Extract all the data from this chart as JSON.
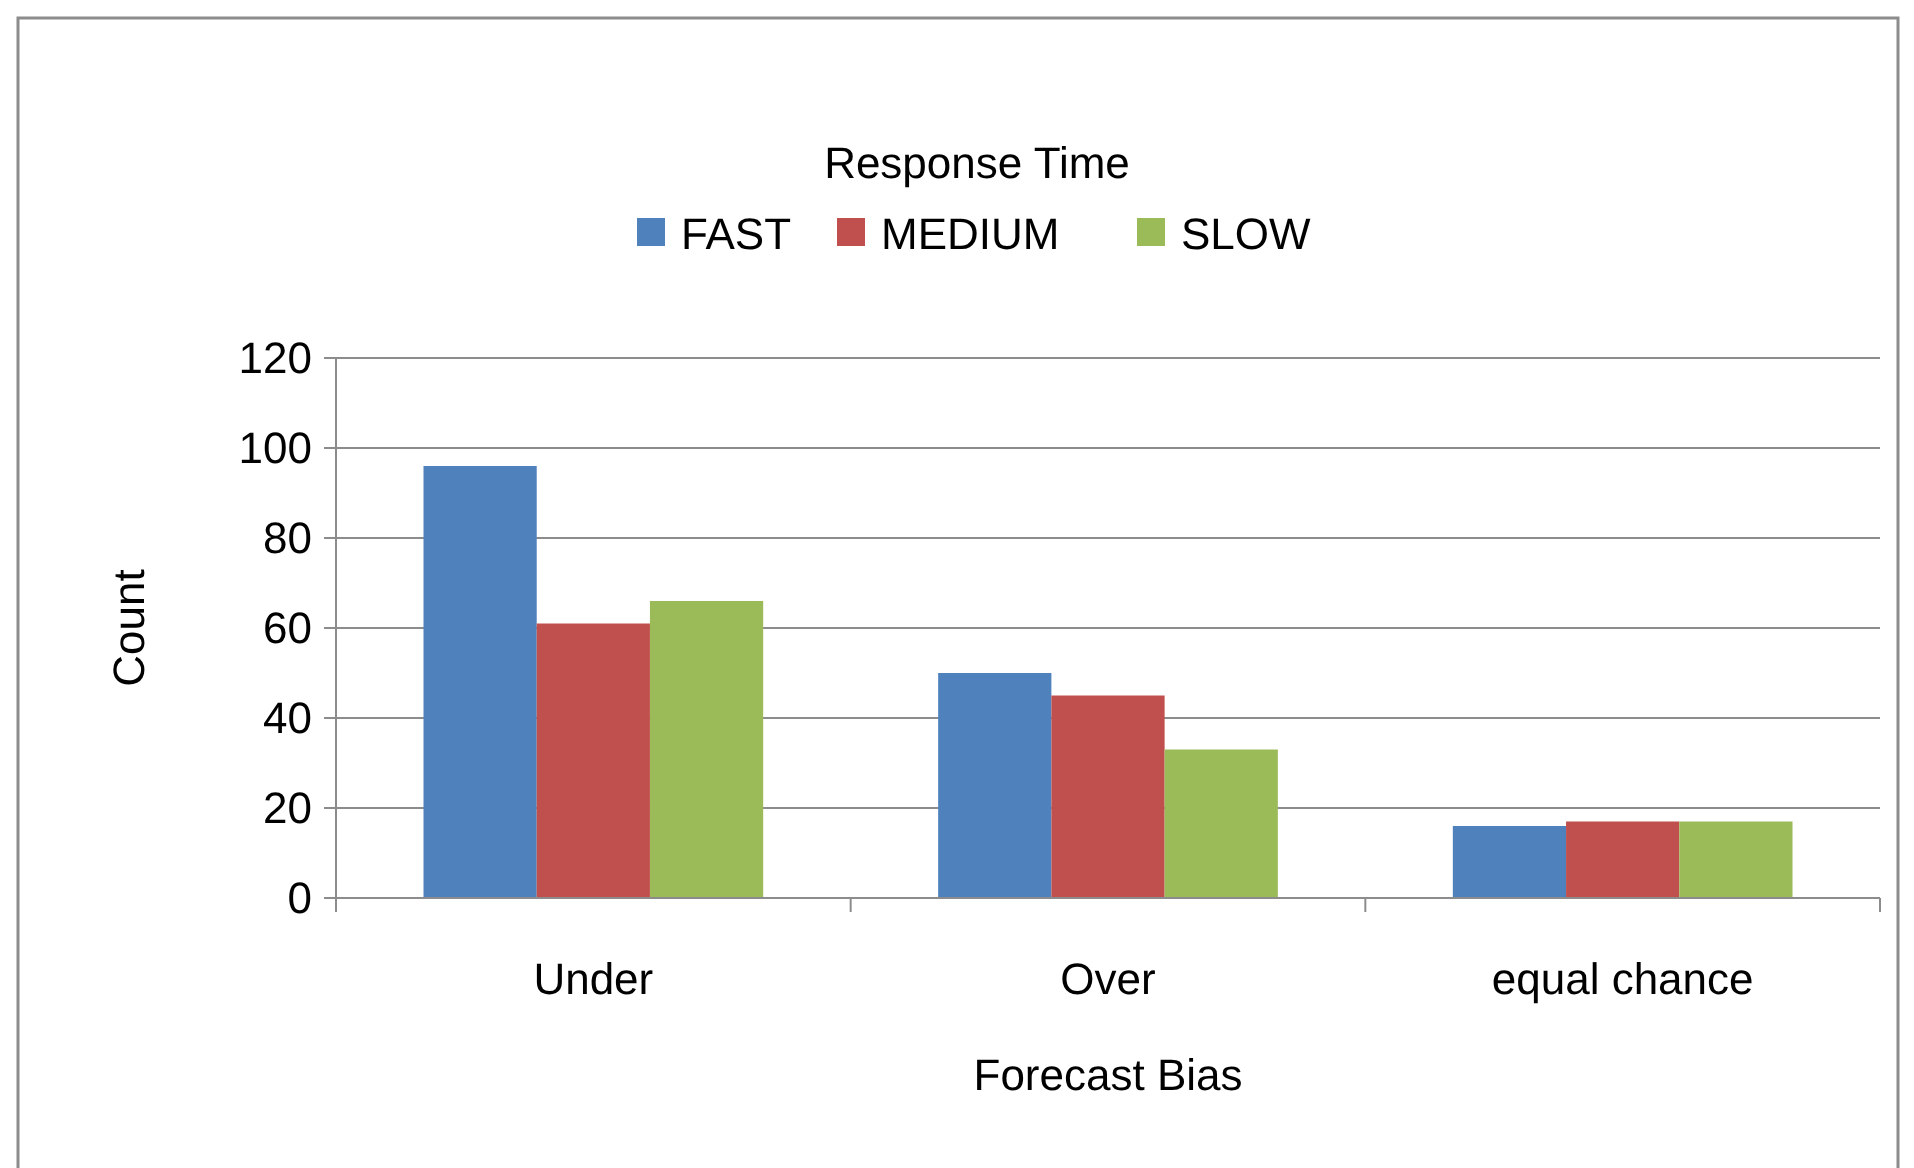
{
  "chart_data": {
    "type": "bar",
    "xlabel": "Forecast Bias",
    "ylabel": "Count",
    "legend_title": "Response Time",
    "categories": [
      "Under",
      "Over",
      "equal chance"
    ],
    "series": [
      {
        "name": "FAST",
        "color": "#4f81bd",
        "values": [
          96,
          50,
          16
        ]
      },
      {
        "name": "MEDIUM",
        "color": "#c0504d",
        "values": [
          61,
          45,
          17
        ]
      },
      {
        "name": "SLOW",
        "color": "#9bbb59",
        "values": [
          66,
          33,
          17
        ]
      }
    ],
    "ylim": [
      0,
      120
    ],
    "yticks": [
      0,
      20,
      40,
      60,
      80,
      100,
      120
    ],
    "grid": "y",
    "legend": "top"
  }
}
